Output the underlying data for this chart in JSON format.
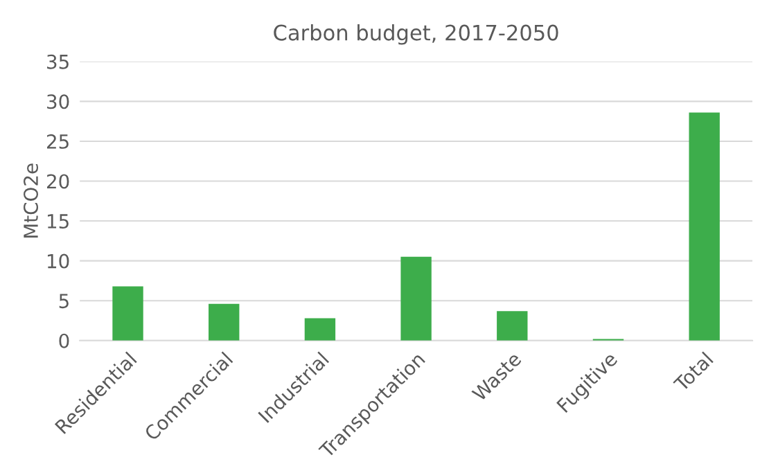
{
  "chart_data": {
    "type": "bar",
    "title": "Carbon budget, 2017-2050",
    "ylabel": "MtCO2e",
    "categories": [
      "Residential",
      "Commercial",
      "Industrial",
      "Transportation",
      "Waste",
      "Fugitive",
      "Total"
    ],
    "values": [
      6.8,
      4.6,
      2.8,
      10.5,
      3.7,
      0.2,
      28.6
    ],
    "color": "#3dad4b",
    "ylim": [
      0,
      35
    ],
    "yticks": [
      0,
      5,
      10,
      15,
      20,
      25,
      30,
      35
    ],
    "grid": "y",
    "legend": false
  }
}
